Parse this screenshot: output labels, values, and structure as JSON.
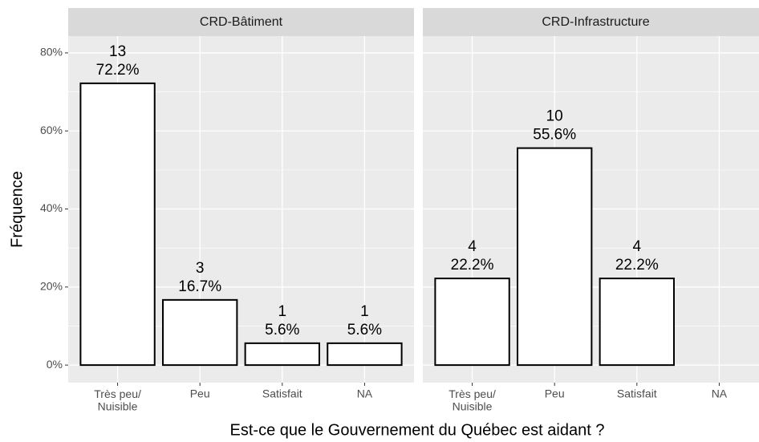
{
  "ylabel": "Fréquence",
  "xlabel": "Est-ce que le Gouvernement du Québec est aidant ?",
  "chart_data": [
    {
      "type": "bar",
      "title": "CRD-Bâtiment",
      "categories": [
        "Très peu/\nNuisible",
        "Peu",
        "Satisfait",
        "NA"
      ],
      "values": [
        72.2,
        16.7,
        5.6,
        5.6
      ],
      "value_labels": [
        "72.2%",
        "16.7%",
        "5.6%",
        "5.6%"
      ],
      "counts": [
        13,
        3,
        1,
        1
      ],
      "color": "#ffffff",
      "ylim": [
        -4.5,
        84.3
      ],
      "yticks": [
        {
          "value": 0,
          "label": "0%"
        },
        {
          "value": 20,
          "label": "20%"
        },
        {
          "value": 40,
          "label": "40%"
        },
        {
          "value": 60,
          "label": "60%"
        },
        {
          "value": 80,
          "label": "80%"
        }
      ],
      "yminor": [
        10,
        30,
        50,
        70
      ],
      "grid": true
    },
    {
      "type": "bar",
      "title": "CRD-Infrastructure",
      "categories": [
        "Très peu/\nNuisible",
        "Peu",
        "Satisfait",
        "NA"
      ],
      "values": [
        22.2,
        55.6,
        22.2,
        null
      ],
      "value_labels": [
        "22.2%",
        "55.6%",
        "22.2%",
        null
      ],
      "counts": [
        4,
        10,
        4,
        null
      ],
      "color": "#ffffff",
      "ylim": [
        -4.5,
        84.3
      ],
      "yticks": [
        {
          "value": 0,
          "label": "0%"
        },
        {
          "value": 20,
          "label": "20%"
        },
        {
          "value": 40,
          "label": "40%"
        },
        {
          "value": 60,
          "label": "60%"
        },
        {
          "value": 80,
          "label": "80%"
        }
      ],
      "yminor": [
        10,
        30,
        50,
        70
      ],
      "grid": true
    }
  ]
}
